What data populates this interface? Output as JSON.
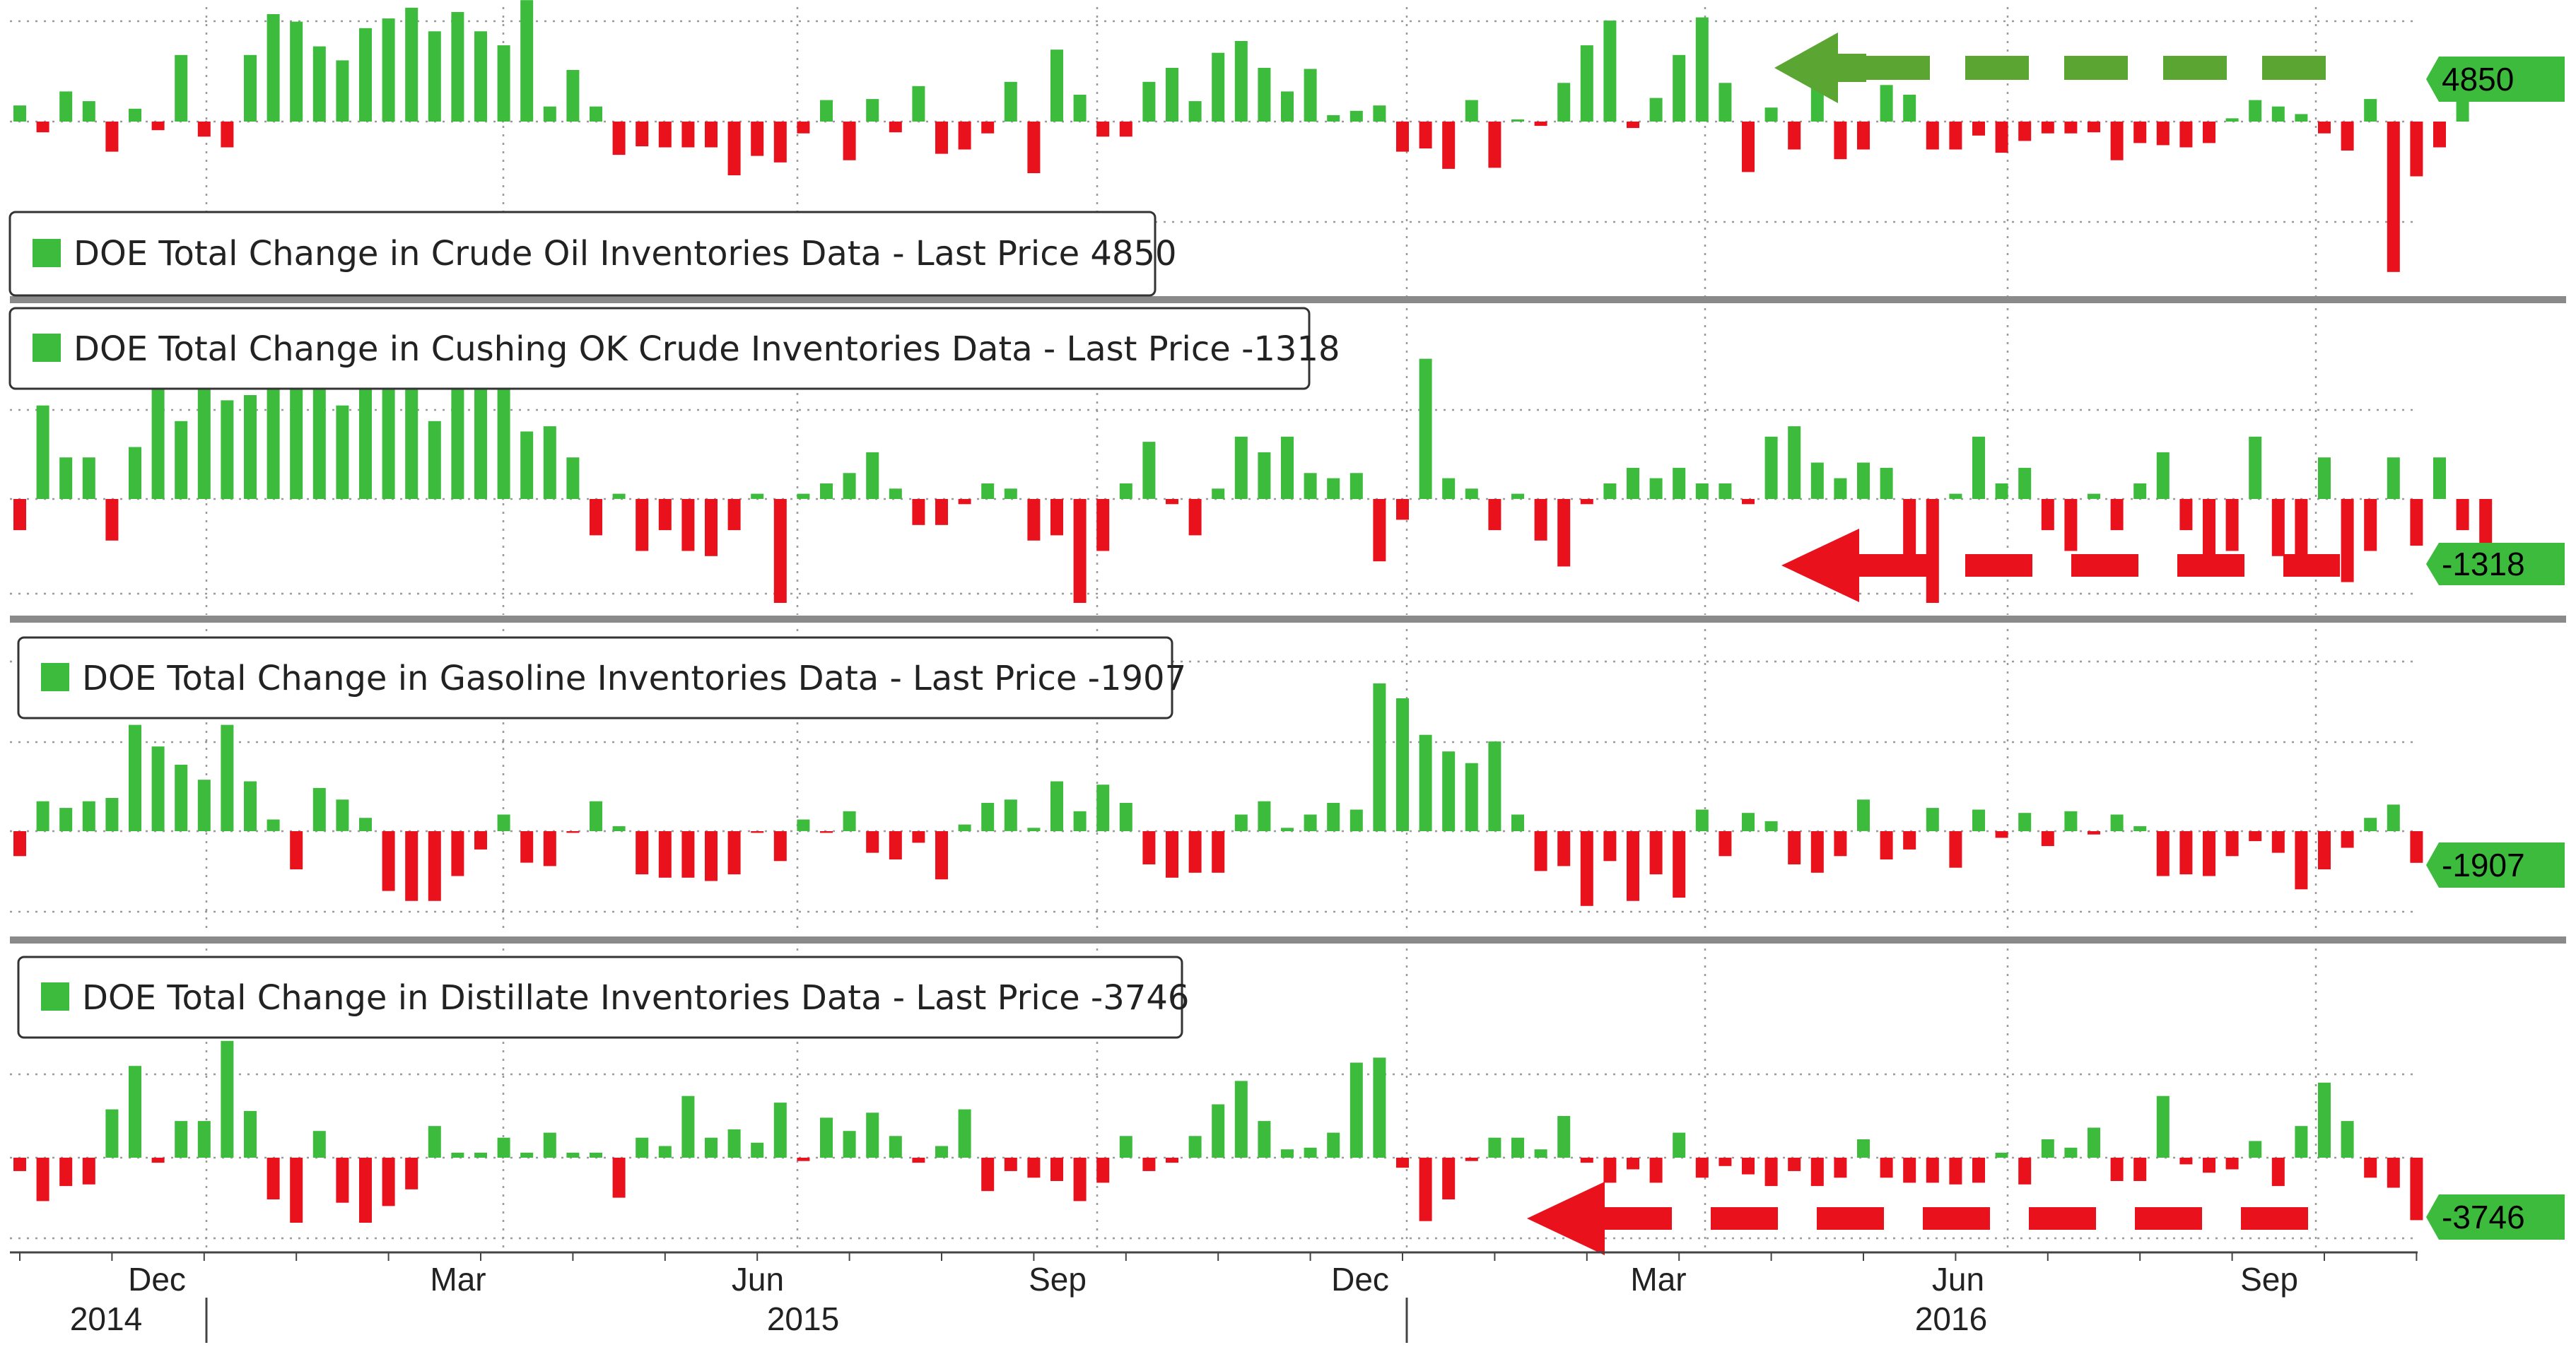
{
  "chart_data": {
    "type": "bar",
    "x_axis": {
      "month_labels": [
        "Dec",
        "Mar",
        "Jun",
        "Sep",
        "Dec",
        "Mar",
        "Jun",
        "Sep"
      ],
      "year_labels": [
        "2014",
        "2015",
        "2016"
      ]
    },
    "colors": {
      "positive": "#3dbb3d",
      "negative": "#e8111c",
      "tag": "#3dbb3d",
      "arrow_green": "#5ba632",
      "arrow_red": "#e8111c"
    },
    "grid": "dotted",
    "panels": [
      {
        "legend": "DOE Total Change in Crude Oil Inventories Data - Last Price 4850",
        "last_value_label": "4850",
        "series": {
          "name": "DOE Total Change in Crude Oil Inventories Data",
          "last_price": 4850,
          "values": [
            1500,
            -1000,
            2800,
            1900,
            -2800,
            1200,
            -800,
            6200,
            -1400,
            -2400,
            6200,
            10000,
            9300,
            7000,
            5700,
            8700,
            9600,
            10600,
            8400,
            10200,
            8400,
            7100,
            11300,
            1400,
            4800,
            1400,
            -3100,
            -2300,
            -2400,
            -2400,
            -2400,
            -5000,
            -3200,
            -3800,
            -1100,
            2000,
            -3600,
            2100,
            -1000,
            3300,
            -3000,
            -2600,
            -1100,
            3700,
            -4800,
            6700,
            2500,
            -1400,
            -1400,
            3700,
            5000,
            1900,
            6400,
            7500,
            5000,
            2800,
            4900,
            600,
            1000,
            1500,
            -2800,
            -2500,
            -4400,
            2000,
            -4300,
            200,
            -400,
            3600,
            7100,
            9400,
            -600,
            2200,
            6200,
            9700,
            3600,
            -4700,
            1300,
            -2600,
            3800,
            -3500,
            -2600,
            3400,
            2500,
            -2600,
            -2600,
            -1300,
            -2900,
            -1800,
            -1100,
            -1100,
            -1000,
            -3600,
            -2000,
            -2200,
            -2400,
            -2000,
            300,
            2000,
            1400,
            700,
            -1100,
            -2700,
            2100,
            -14000,
            -5100,
            -2400,
            4850
          ]
        }
      },
      {
        "legend": "DOE Total Change in Cushing OK Crude Inventories Data - Last Price -1318",
        "last_value_label": "-1318",
        "series": {
          "name": "DOE Total Change in Cushing OK Crude Inventories Data",
          "last_price": -1318,
          "values": [
            -600,
            1800,
            800,
            800,
            -800,
            1000,
            2700,
            1500,
            2300,
            1900,
            2000,
            2700,
            2500,
            2700,
            1800,
            2400,
            2700,
            2700,
            1500,
            2500,
            2700,
            2700,
            1300,
            1400,
            800,
            -700,
            100,
            -1000,
            -600,
            -1000,
            -1100,
            -600,
            100,
            -2000,
            100,
            300,
            500,
            900,
            200,
            -500,
            -500,
            -100,
            300,
            200,
            -800,
            -700,
            -2000,
            -1000,
            300,
            1100,
            -100,
            -700,
            200,
            1200,
            900,
            1200,
            500,
            400,
            500,
            -1200,
            -400,
            2700,
            400,
            200,
            -600,
            100,
            -800,
            -1300,
            -100,
            300,
            600,
            400,
            600,
            300,
            300,
            -100,
            1200,
            1400,
            700,
            400,
            700,
            600,
            -1400,
            -2000,
            100,
            1200,
            300,
            600,
            -600,
            -1000,
            100,
            -600,
            300,
            900,
            -600,
            -1100,
            -1000,
            1200,
            -1100,
            -1100,
            800,
            -1600,
            -1000,
            800,
            -900,
            800,
            -600,
            -1318
          ]
        }
      },
      {
        "legend": "DOE Total Change in Gasoline Inventories Data - Last Price -1907",
        "last_value_label": "-1907",
        "series": {
          "name": "DOE Total Change in Gasoline Inventories Data",
          "last_price": -1907,
          "values": [
            -1500,
            1800,
            1400,
            1800,
            2000,
            6400,
            5100,
            4000,
            3100,
            6400,
            3000,
            700,
            -2300,
            2600,
            1900,
            800,
            -3600,
            -4200,
            -4200,
            -2700,
            -1100,
            1000,
            -1900,
            -2100,
            -100,
            1800,
            300,
            -2600,
            -2800,
            -2800,
            -3000,
            -2600,
            -100,
            -1800,
            700,
            -100,
            1200,
            -1300,
            -1700,
            -700,
            -2900,
            400,
            1700,
            1900,
            200,
            3000,
            1200,
            2800,
            1700,
            -2000,
            -2800,
            -2500,
            -2500,
            1000,
            1800,
            200,
            1000,
            1700,
            1300,
            8900,
            8000,
            5800,
            4800,
            4100,
            5400,
            1000,
            -2400,
            -2100,
            -4500,
            -1800,
            -4200,
            -2600,
            -4000,
            1300,
            -1500,
            1100,
            600,
            -2000,
            -2500,
            -1500,
            1900,
            -1700,
            -1100,
            1400,
            -2200,
            1300,
            -400,
            1100,
            -900,
            1200,
            -200,
            1000,
            300,
            -2700,
            -2600,
            -2700,
            -1500,
            -600,
            -1300,
            -3500,
            -2300,
            -1000,
            800,
            1600,
            -1907
          ]
        }
      },
      {
        "legend": "DOE Total Change in Distillate Inventories Data - Last Price -3746",
        "last_value_label": "-3746",
        "series": {
          "name": "DOE Total Change in Distillate Inventories Data",
          "last_price": -3746,
          "values": [
            -800,
            -2600,
            -1700,
            -1600,
            2900,
            5500,
            -300,
            2200,
            2200,
            7000,
            2800,
            -2500,
            -3900,
            1600,
            -2700,
            -3900,
            -2900,
            -1900,
            1900,
            300,
            300,
            1200,
            300,
            1500,
            300,
            300,
            -2400,
            1200,
            700,
            3700,
            1200,
            1700,
            900,
            3300,
            -200,
            2400,
            1600,
            2700,
            1300,
            -300,
            700,
            2900,
            -2000,
            -800,
            -1200,
            -1400,
            -2600,
            -1500,
            1300,
            -800,
            -300,
            1300,
            3200,
            4600,
            2200,
            500,
            600,
            1500,
            5700,
            6000,
            -600,
            -3800,
            -2500,
            -200,
            1200,
            1200,
            500,
            2500,
            -300,
            -1500,
            -700,
            -1500,
            1500,
            -1200,
            -500,
            -1000,
            -1700,
            -800,
            -1700,
            -1200,
            1100,
            -1200,
            -1500,
            -1500,
            -1600,
            -1500,
            300,
            -1600,
            1100,
            600,
            1800,
            -1400,
            -1400,
            3700,
            -400,
            -900,
            -700,
            1000,
            -1700,
            1900,
            4500,
            2200,
            -1200,
            -1800,
            -3746
          ]
        }
      }
    ]
  }
}
